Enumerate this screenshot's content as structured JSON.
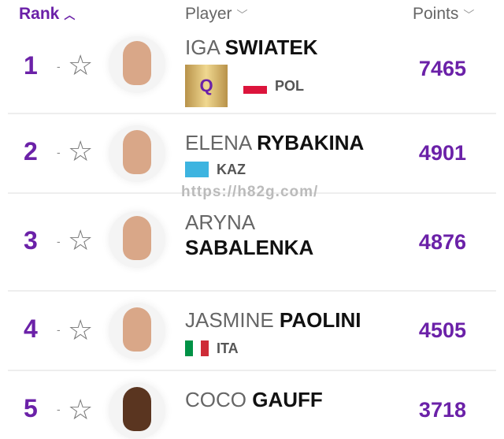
{
  "header": {
    "rank": "Rank",
    "player": "Player",
    "points": "Points"
  },
  "watermark": "https://h82g.com/",
  "accent": "#6b21a8",
  "rows": [
    {
      "rank": "1",
      "movement": "-",
      "first": "IGA",
      "last": "SWIATEK",
      "badge": "Q",
      "country": "POL",
      "points": "7465"
    },
    {
      "rank": "2",
      "movement": "-",
      "first": "ELENA",
      "last": "RYBAKINA",
      "country": "KAZ",
      "points": "4901"
    },
    {
      "rank": "3",
      "movement": "-",
      "first": "ARYNA",
      "last": "SABALENKA",
      "country": "",
      "points": "4876"
    },
    {
      "rank": "4",
      "movement": "-",
      "first": "JASMINE",
      "last": "PAOLINI",
      "country": "ITA",
      "points": "4505"
    },
    {
      "rank": "5",
      "movement": "-",
      "first": "COCO",
      "last": "GAUFF",
      "country": "",
      "points": "3718"
    }
  ]
}
